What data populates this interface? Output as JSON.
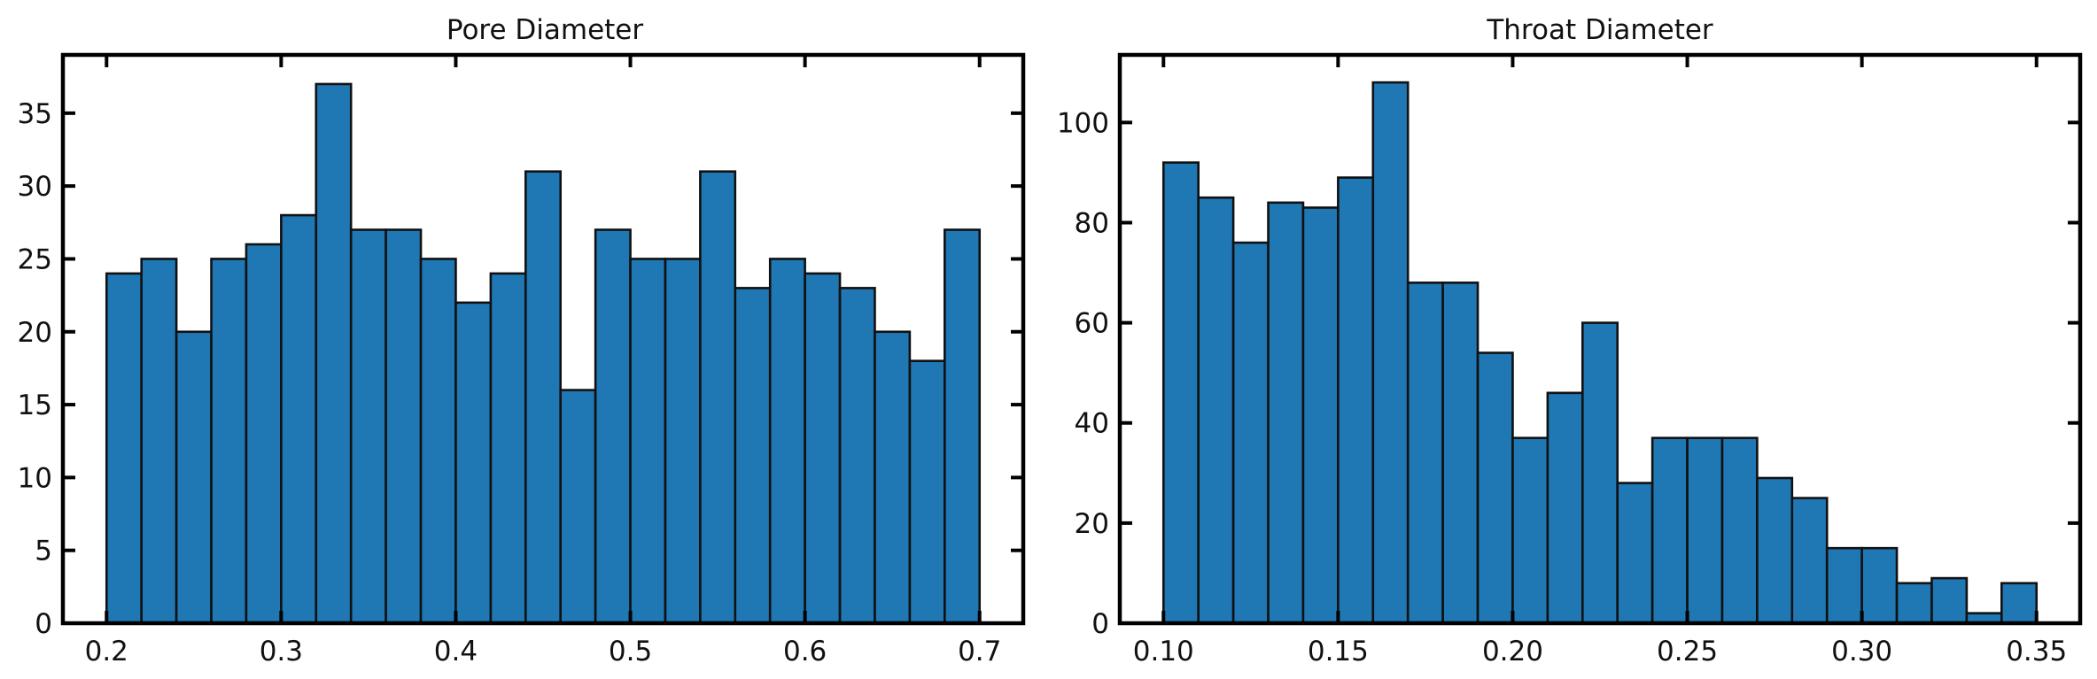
{
  "colors": {
    "bar_fill": "#1f77b4",
    "bar_edge": "#111111",
    "axes": "#000000",
    "background": "#ffffff"
  },
  "chart_data": [
    {
      "type": "bar",
      "subtype": "histogram",
      "title": "Pore Diameter",
      "xlabel": "",
      "ylabel": "",
      "xlim": [
        0.175,
        0.725
      ],
      "ylim": [
        0,
        39
      ],
      "xticks": [
        "0.2",
        "0.3",
        "0.4",
        "0.5",
        "0.6",
        "0.7"
      ],
      "yticks": [
        "0",
        "5",
        "10",
        "15",
        "20",
        "25",
        "30",
        "35"
      ],
      "bin_edges": [
        0.2,
        0.22,
        0.24,
        0.26,
        0.28,
        0.3,
        0.32,
        0.34,
        0.36,
        0.38,
        0.4,
        0.42,
        0.44,
        0.46,
        0.48,
        0.5,
        0.52,
        0.54,
        0.56,
        0.58,
        0.6,
        0.62,
        0.64,
        0.66,
        0.68,
        0.7
      ],
      "values": [
        24,
        25,
        20,
        25,
        26,
        28,
        37,
        27,
        27,
        25,
        22,
        24,
        31,
        16,
        27,
        25,
        25,
        31,
        23,
        25,
        24,
        23,
        20,
        18,
        27
      ],
      "grid": false,
      "tick_direction": "in",
      "mirror_ticks": true
    },
    {
      "type": "bar",
      "subtype": "histogram",
      "title": "Throat Diameter",
      "xlabel": "",
      "ylabel": "",
      "xlim": [
        0.0875,
        0.3625
      ],
      "ylim": [
        0,
        113.5
      ],
      "xticks": [
        "0.10",
        "0.15",
        "0.20",
        "0.25",
        "0.30",
        "0.35"
      ],
      "yticks": [
        "0",
        "20",
        "40",
        "60",
        "80",
        "100"
      ],
      "bin_edges": [
        0.1,
        0.11,
        0.12,
        0.13,
        0.14,
        0.15,
        0.16,
        0.17,
        0.18,
        0.19,
        0.2,
        0.21,
        0.22,
        0.23,
        0.24,
        0.25,
        0.26,
        0.27,
        0.28,
        0.29,
        0.3,
        0.31,
        0.32,
        0.33,
        0.34,
        0.35
      ],
      "values": [
        92,
        85,
        76,
        84,
        83,
        89,
        108,
        68,
        68,
        54,
        37,
        46,
        60,
        28,
        37,
        37,
        37,
        29,
        25,
        15,
        15,
        8,
        9,
        2,
        8
      ],
      "grid": false,
      "tick_direction": "in",
      "mirror_ticks": true
    }
  ]
}
